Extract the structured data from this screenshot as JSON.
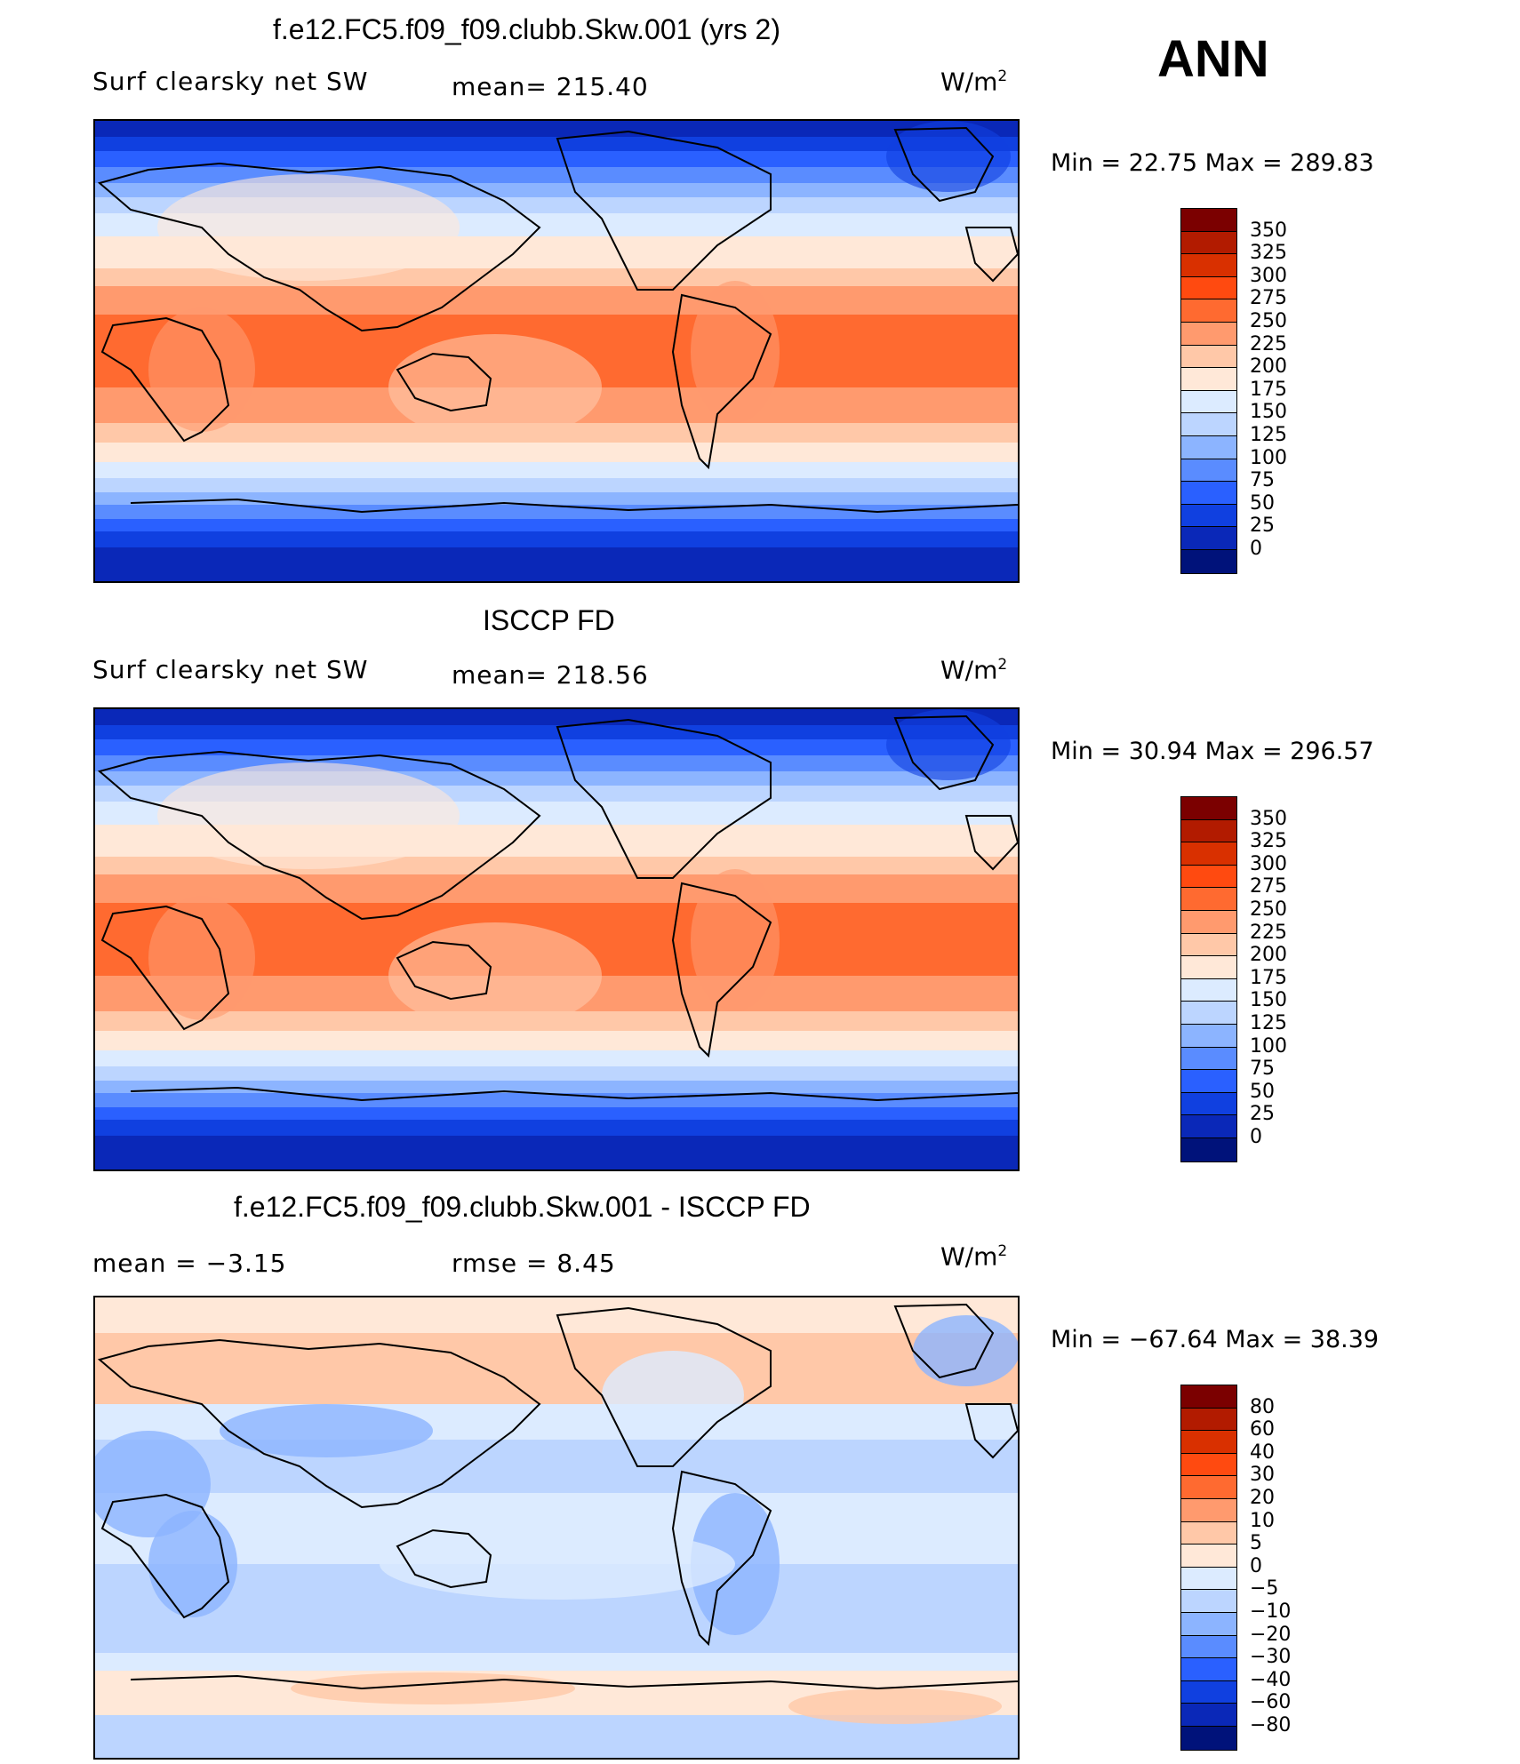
{
  "season": "ANN",
  "panels": [
    {
      "id": "model",
      "title": "f.e12.FC5.f09_f09.clubb.Skw.001 (yrs 2)",
      "left_label": "Surf clearsky net SW",
      "stat_label": "mean= 215.40",
      "units_base": "W/m",
      "units_sup": "2",
      "min_max": "Min =   22.75 Max = 289.83",
      "field": "absolute"
    },
    {
      "id": "obs",
      "title": "ISCCP FD",
      "left_label": "Surf clearsky net SW",
      "stat_label": "mean= 218.56",
      "units_base": "W/m",
      "units_sup": "2",
      "min_max": "Min =   30.94 Max = 296.57",
      "field": "absolute"
    },
    {
      "id": "diff",
      "title": "f.e12.FC5.f09_f09.clubb.Skw.001 - ISCCP FD",
      "left_label": "mean =   −3.15",
      "stat_label": "rmse =    8.45",
      "units_base": "W/m",
      "units_sup": "2",
      "min_max": "Min = −67.64 Max =  38.39",
      "field": "difference"
    }
  ],
  "colorbars": {
    "absolute": {
      "levels": [
        "350",
        "325",
        "300",
        "275",
        "250",
        "225",
        "200",
        "175",
        "150",
        "125",
        "100",
        "75",
        "50",
        "25",
        "0"
      ],
      "colors": [
        "#7b0000",
        "#b21b00",
        "#d93000",
        "#ff4a10",
        "#ff6a30",
        "#ff9a6e",
        "#ffc8a8",
        "#ffe8d8",
        "#dcebff",
        "#bcd5ff",
        "#8cb4ff",
        "#5a8cff",
        "#2a60ff",
        "#1040e0",
        "#0a28b8",
        "#00127a"
      ]
    },
    "difference": {
      "levels": [
        "80",
        "60",
        "40",
        "30",
        "20",
        "10",
        "5",
        "0",
        "−5",
        "−10",
        "−20",
        "−30",
        "−40",
        "−60",
        "−80"
      ],
      "colors": [
        "#7b0000",
        "#b21b00",
        "#d93000",
        "#ff4a10",
        "#ff6a30",
        "#ff9a6e",
        "#ffc8a8",
        "#ffe8d8",
        "#dcebff",
        "#bcd5ff",
        "#8cb4ff",
        "#5a8cff",
        "#2a60ff",
        "#1040e0",
        "#0a28b8",
        "#00127a"
      ]
    }
  }
}
